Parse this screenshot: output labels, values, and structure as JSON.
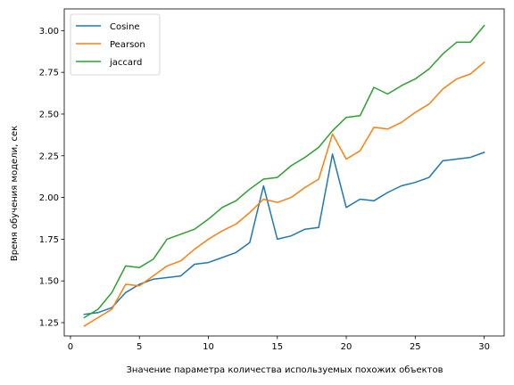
{
  "chart_data": {
    "type": "line",
    "title": "",
    "xlabel": "Значение параметра количества используемых похожих объектов",
    "ylabel": "Время обучения модели, сек",
    "xlim": [
      -0.45,
      31.45
    ],
    "ylim": [
      1.17,
      3.13
    ],
    "xticks": [
      0,
      5,
      10,
      15,
      20,
      25,
      30
    ],
    "yticks": [
      1.25,
      1.5,
      1.75,
      2.0,
      2.25,
      2.5,
      2.75,
      3.0
    ],
    "grid": false,
    "legend_position": "top-left",
    "x": [
      1,
      2,
      3,
      4,
      5,
      6,
      7,
      8,
      9,
      10,
      11,
      12,
      13,
      14,
      15,
      16,
      17,
      18,
      19,
      20,
      21,
      22,
      23,
      24,
      25,
      26,
      27,
      28,
      29,
      30
    ],
    "series": [
      {
        "name": "Cosine",
        "color": "#1f77b4",
        "values": [
          1.3,
          1.31,
          1.34,
          1.43,
          1.48,
          1.51,
          1.52,
          1.53,
          1.6,
          1.61,
          1.64,
          1.67,
          1.73,
          2.07,
          1.75,
          1.77,
          1.81,
          1.82,
          2.26,
          1.94,
          1.99,
          1.98,
          2.03,
          2.07,
          2.09,
          2.12,
          2.22,
          2.23,
          2.24,
          2.27
        ]
      },
      {
        "name": "Pearson",
        "color": "#ff7f0e",
        "values": [
          1.23,
          1.28,
          1.33,
          1.48,
          1.47,
          1.53,
          1.59,
          1.62,
          1.69,
          1.75,
          1.8,
          1.84,
          1.91,
          1.99,
          1.97,
          2.0,
          2.06,
          2.11,
          2.38,
          2.23,
          2.28,
          2.42,
          2.41,
          2.45,
          2.51,
          2.56,
          2.65,
          2.71,
          2.74,
          2.81
        ]
      },
      {
        "name": "jaccard",
        "color": "#2ca02c",
        "values": [
          1.28,
          1.33,
          1.43,
          1.59,
          1.58,
          1.63,
          1.75,
          1.78,
          1.81,
          1.87,
          1.94,
          1.98,
          2.05,
          2.11,
          2.12,
          2.19,
          2.24,
          2.3,
          2.4,
          2.48,
          2.49,
          2.66,
          2.62,
          2.67,
          2.71,
          2.77,
          2.86,
          2.93,
          2.93,
          3.03
        ]
      }
    ]
  }
}
